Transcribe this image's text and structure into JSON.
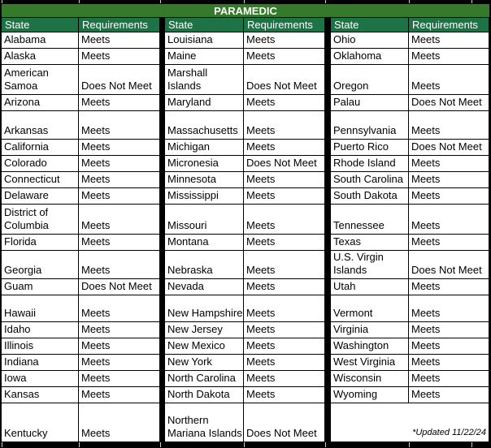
{
  "title": "PARAMEDIC",
  "columns": {
    "state": "State",
    "requirements": "Requirements"
  },
  "footnote": "*Updated 11/22/24",
  "colors": {
    "title_bg": "#35792a",
    "header_bg": "#1e7346",
    "cell_bg": "#ffffff",
    "grid": "#000000",
    "header_text": "#ffffff",
    "body_text": "#000000"
  },
  "groups": [
    {
      "rows": [
        {
          "state": "Alabama",
          "requirements": "Meets"
        },
        {
          "state": "Alaska",
          "requirements": "Meets"
        },
        {
          "state": "American\nSamoa",
          "requirements": "Does Not Meet"
        },
        {
          "state": "Arizona",
          "requirements": "Meets"
        },
        {
          "state": "Arkansas",
          "requirements": "Meets"
        },
        {
          "state": "California",
          "requirements": "Meets"
        },
        {
          "state": "Colorado",
          "requirements": "Meets"
        },
        {
          "state": "Connecticut",
          "requirements": "Meets"
        },
        {
          "state": "Delaware",
          "requirements": "Meets"
        },
        {
          "state": "District of\nColumbia",
          "requirements": "Meets"
        },
        {
          "state": "Florida",
          "requirements": "Meets"
        },
        {
          "state": "Georgia",
          "requirements": "Meets"
        },
        {
          "state": "Guam",
          "requirements": "Does Not Meet"
        },
        {
          "state": "Hawaii",
          "requirements": "Meets"
        },
        {
          "state": "Idaho",
          "requirements": "Meets"
        },
        {
          "state": "Illinois",
          "requirements": "Meets"
        },
        {
          "state": "Indiana",
          "requirements": "Meets"
        },
        {
          "state": "Iowa",
          "requirements": "Meets"
        },
        {
          "state": "Kansas",
          "requirements": "Meets"
        },
        {
          "state": "Kentucky",
          "requirements": "Meets"
        }
      ]
    },
    {
      "rows": [
        {
          "state": "Louisiana",
          "requirements": "Meets"
        },
        {
          "state": "Maine",
          "requirements": "Meets"
        },
        {
          "state": "Marshall\nIslands",
          "requirements": "Does Not Meet"
        },
        {
          "state": "Maryland",
          "requirements": "Meets"
        },
        {
          "state": "Massachusetts",
          "requirements": "Meets"
        },
        {
          "state": "Michigan",
          "requirements": "Meets"
        },
        {
          "state": "Micronesia",
          "requirements": "Does Not Meet"
        },
        {
          "state": "Minnesota",
          "requirements": "Meets"
        },
        {
          "state": "Mississippi",
          "requirements": "Meets"
        },
        {
          "state": "Missouri",
          "requirements": "Meets"
        },
        {
          "state": "Montana",
          "requirements": "Meets"
        },
        {
          "state": "Nebraska",
          "requirements": "Meets"
        },
        {
          "state": "Nevada",
          "requirements": "Meets"
        },
        {
          "state": "New Hampshire",
          "requirements": "Meets"
        },
        {
          "state": "New Jersey",
          "requirements": "Meets"
        },
        {
          "state": "New Mexico",
          "requirements": "Meets"
        },
        {
          "state": "New York",
          "requirements": "Meets"
        },
        {
          "state": "North Carolina",
          "requirements": "Meets"
        },
        {
          "state": "North Dakota",
          "requirements": "Meets"
        },
        {
          "state": "Northern\nMariana Islands",
          "requirements": "Does Not Meet"
        }
      ]
    },
    {
      "rows": [
        {
          "state": "Ohio",
          "requirements": "Meets"
        },
        {
          "state": "Oklahoma",
          "requirements": "Meets"
        },
        {
          "state": "Oregon",
          "requirements": "Meets"
        },
        {
          "state": "Palau",
          "requirements": "Does Not Meet"
        },
        {
          "state": "Pennsylvania",
          "requirements": "Meets"
        },
        {
          "state": "Puerto Rico",
          "requirements": "Does Not Meet"
        },
        {
          "state": "Rhode Island",
          "requirements": "Meets"
        },
        {
          "state": "South Carolina",
          "requirements": "Meets"
        },
        {
          "state": "South Dakota",
          "requirements": "Meets"
        },
        {
          "state": "Tennessee",
          "requirements": "Meets"
        },
        {
          "state": "Texas",
          "requirements": "Meets"
        },
        {
          "state": "U.S. Virgin\nIslands",
          "requirements": "Does Not Meet"
        },
        {
          "state": "Utah",
          "requirements": "Meets"
        },
        {
          "state": "Vermont",
          "requirements": "Meets"
        },
        {
          "state": "Virginia",
          "requirements": "Meets"
        },
        {
          "state": "Washington",
          "requirements": "Meets"
        },
        {
          "state": "West Virginia",
          "requirements": "Meets"
        },
        {
          "state": "Wisconsin",
          "requirements": "Meets"
        },
        {
          "state": "Wyoming",
          "requirements": "Meets"
        },
        {
          "note": "*Updated 11/22/24"
        }
      ]
    }
  ]
}
